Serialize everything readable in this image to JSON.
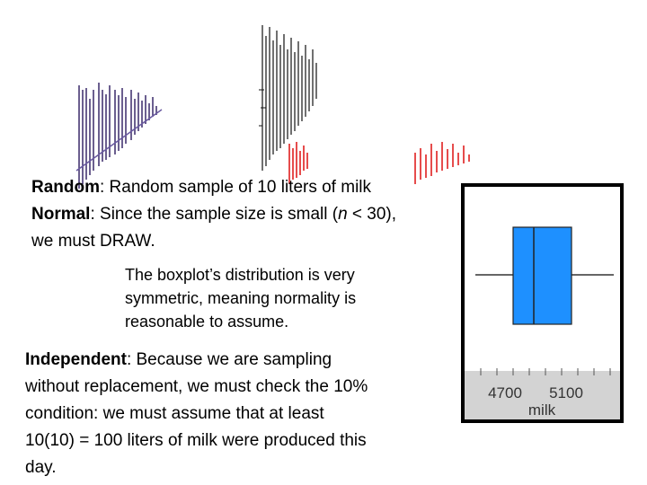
{
  "random": {
    "label": "Random",
    "text": ": Random sample of 10 liters of milk"
  },
  "normal": {
    "label": "Normal",
    "text_before": ": Since the sample size is small (",
    "n": "n",
    "text_after": " < 30),",
    "line2": "we must DRAW."
  },
  "boxplot_note": {
    "line1": "The boxplot’s distribution is very",
    "line2": "symmetric, meaning normality is",
    "line3": "reasonable to assume."
  },
  "independent": {
    "label": "Independent",
    "line1": ": Because we are sampling",
    "line2": "without replacement, we must check the 10%",
    "line3": "condition: we must assume that at least",
    "line4": "10(10) = 100 liters of milk were produced this",
    "line5": "day."
  },
  "chart_data": {
    "type": "boxplot",
    "xlabel": "milk",
    "tick_labels": [
      "4700",
      "5100"
    ],
    "box_color": "#1E90FF",
    "axis_band_color": "#D3D3D3"
  }
}
